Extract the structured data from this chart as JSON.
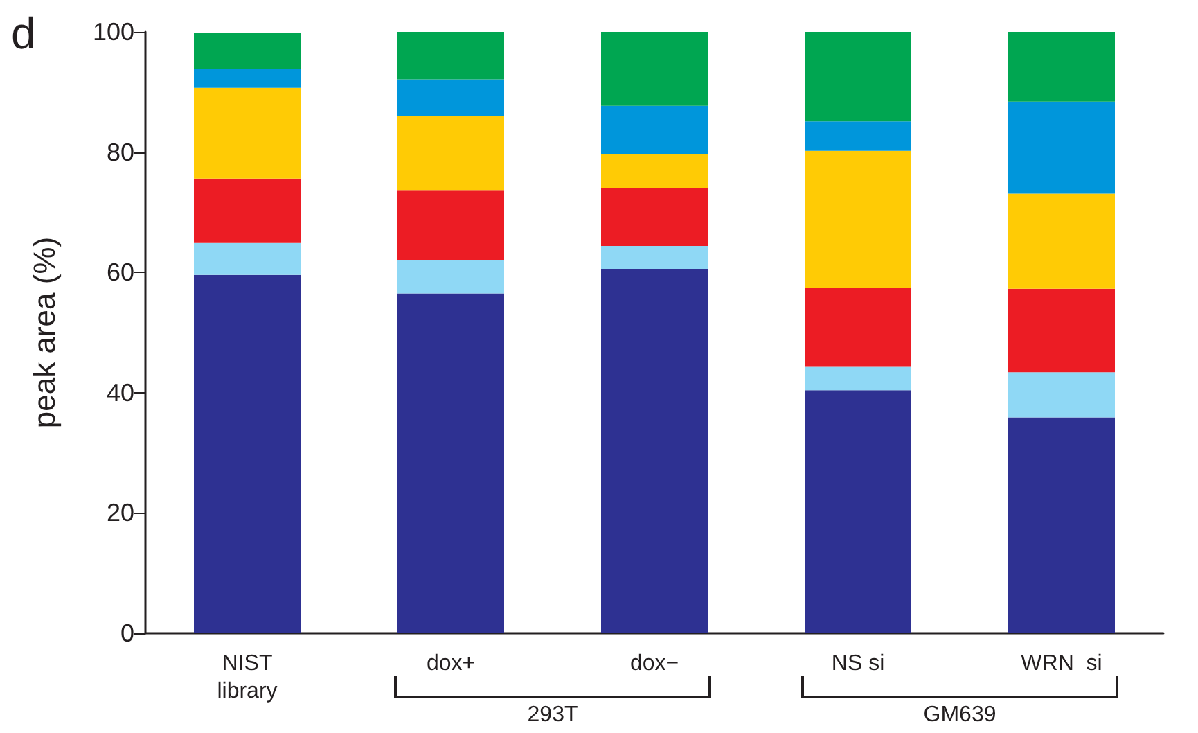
{
  "chart_data": {
    "type": "bar",
    "stacked": true,
    "ylabel": "peak area (%)",
    "categories": [
      "NIST\nlibrary",
      "dox+",
      "dox−",
      "NS si",
      "WRN  si"
    ],
    "series": [
      {
        "color": "#2e3192",
        "values": [
          59.6,
          56.5,
          60.6,
          40.4,
          35.9
        ]
      },
      {
        "color": "#8fd8f5",
        "values": [
          5.3,
          5.6,
          3.8,
          3.9,
          7.5
        ]
      },
      {
        "color": "#ec1c24",
        "values": [
          10.7,
          11.6,
          9.6,
          13.2,
          13.9
        ]
      },
      {
        "color": "#ffcb05",
        "values": [
          15.1,
          12.3,
          5.6,
          22.7,
          15.8
        ]
      },
      {
        "color": "#0096db",
        "values": [
          3.1,
          6.1,
          8.1,
          4.9,
          15.3
        ]
      },
      {
        "color": "#00a651",
        "values": [
          6.0,
          7.9,
          12.3,
          14.9,
          11.6
        ]
      }
    ],
    "ylim": [
      0,
      100
    ],
    "yticks": [
      0,
      20,
      40,
      60,
      80,
      100
    ],
    "grid": false,
    "annotations": [
      "d",
      "293T",
      "GM639"
    ]
  }
}
